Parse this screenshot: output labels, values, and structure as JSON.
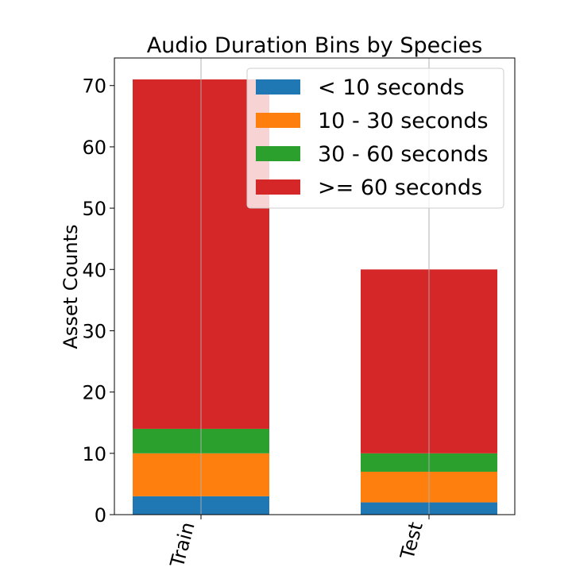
{
  "chart_data": {
    "type": "bar",
    "stacked": true,
    "title": "Audio Duration Bins by Species",
    "xlabel": "",
    "ylabel": "Asset Counts",
    "categories": [
      "Train",
      "Test"
    ],
    "ylim": [
      0,
      74.5
    ],
    "yticks": [
      0,
      10,
      20,
      30,
      40,
      50,
      60,
      70
    ],
    "grid": "x",
    "legend_position": "top-right",
    "series": [
      {
        "name": "< 10 seconds",
        "color": "#1f77b4",
        "values": [
          3,
          2
        ]
      },
      {
        "name": "10 - 30 seconds",
        "color": "#ff7f0e",
        "values": [
          7,
          5
        ]
      },
      {
        "name": "30 - 60 seconds",
        "color": "#2ca02c",
        "values": [
          4,
          3
        ]
      },
      {
        "name": ">= 60 seconds",
        "color": "#d62728",
        "values": [
          57,
          30
        ]
      }
    ]
  }
}
